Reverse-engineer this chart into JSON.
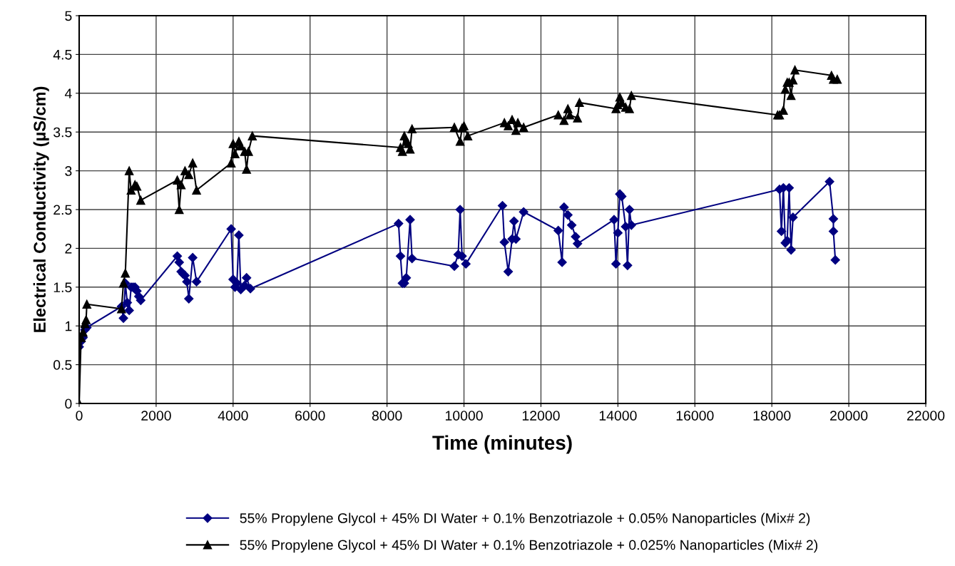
{
  "chart_data": {
    "type": "line",
    "xlabel": "Time (minutes)",
    "ylabel": "Electrical Conductivity (µS/cm)",
    "xlim": [
      0,
      22000
    ],
    "ylim": [
      0,
      5
    ],
    "xticks": [
      0,
      2000,
      4000,
      6000,
      8000,
      10000,
      12000,
      14000,
      16000,
      18000,
      20000,
      22000
    ],
    "yticks": [
      0,
      0.5,
      1,
      1.5,
      2,
      2.5,
      3,
      3.5,
      4,
      4.5,
      5
    ],
    "grid": true,
    "legend": "bottom",
    "series": [
      {
        "name": "55% Propylene Glycol + 45% DI Water + 0.1% Benzotriazole + 0.05% Nanoparticles (Mix# 2)",
        "color": "#000080",
        "marker": "diamond",
        "x": [
          0,
          50,
          100,
          150,
          200,
          1100,
          1150,
          1200,
          1250,
          1300,
          1350,
          1400,
          1450,
          1500,
          1550,
          1600,
          2550,
          2600,
          2650,
          2700,
          2750,
          2800,
          2850,
          2950,
          3050,
          3950,
          4000,
          4050,
          4100,
          4150,
          4200,
          4300,
          4350,
          4450,
          8300,
          8350,
          8400,
          8450,
          8500,
          8600,
          8650,
          9750,
          9850,
          9900,
          9950,
          10050,
          11000,
          11050,
          11150,
          11250,
          11300,
          11350,
          11550,
          12450,
          12550,
          12600,
          12700,
          12800,
          12900,
          12950,
          13900,
          13950,
          14000,
          14050,
          14100,
          14200,
          14250,
          14300,
          14350,
          18200,
          18250,
          18300,
          18350,
          18400,
          18450,
          18500,
          18550,
          19500,
          19600,
          19600,
          19650
        ],
        "values": [
          0.73,
          0.8,
          0.85,
          0.95,
          0.98,
          1.25,
          1.1,
          1.55,
          1.3,
          1.2,
          1.5,
          1.5,
          1.5,
          1.45,
          1.38,
          1.33,
          1.9,
          1.82,
          1.7,
          1.67,
          1.65,
          1.57,
          1.35,
          1.88,
          1.57,
          2.25,
          1.6,
          1.5,
          1.55,
          2.17,
          1.47,
          1.52,
          1.62,
          1.48,
          2.32,
          1.9,
          1.55,
          1.55,
          1.62,
          2.37,
          1.87,
          1.77,
          1.92,
          2.5,
          1.9,
          1.8,
          2.55,
          2.08,
          1.7,
          2.12,
          2.35,
          2.12,
          2.47,
          2.23,
          1.82,
          2.53,
          2.43,
          2.3,
          2.15,
          2.06,
          2.37,
          1.8,
          2.2,
          2.7,
          2.67,
          2.28,
          1.78,
          2.5,
          2.3,
          2.76,
          2.22,
          2.78,
          2.07,
          2.1,
          2.78,
          1.98,
          2.4,
          2.86,
          2.38,
          2.22,
          1.85
        ]
      },
      {
        "name": "55% Propylene Glycol + 45% DI Water + 0.1% Benzotriazole + 0.025% Nanoparticles (Mix# 2)",
        "color": "#000000",
        "marker": "triangle",
        "x": [
          0,
          50,
          100,
          150,
          180,
          200,
          1100,
          1150,
          1200,
          1300,
          1350,
          1450,
          1500,
          1600,
          2550,
          2600,
          2650,
          2750,
          2850,
          2950,
          3050,
          3950,
          4000,
          4050,
          4150,
          4200,
          4300,
          4350,
          4400,
          4500,
          8350,
          8400,
          8450,
          8500,
          8550,
          8600,
          8650,
          9750,
          9900,
          9950,
          10000,
          10100,
          11050,
          11150,
          11250,
          11350,
          11400,
          11550,
          12450,
          12600,
          12700,
          12750,
          12950,
          13000,
          13950,
          14000,
          14050,
          14100,
          14200,
          14300,
          14350,
          18150,
          18200,
          18300,
          18350,
          18400,
          18450,
          18500,
          18550,
          18600,
          19550,
          19600,
          19700
        ],
        "values": [
          0,
          0.85,
          0.92,
          1.03,
          1.08,
          1.28,
          1.22,
          1.55,
          1.68,
          3.0,
          2.75,
          2.82,
          2.8,
          2.62,
          2.88,
          2.5,
          2.82,
          3.0,
          2.95,
          3.1,
          2.75,
          3.1,
          3.35,
          3.22,
          3.38,
          3.32,
          3.25,
          3.02,
          3.25,
          3.45,
          3.3,
          3.25,
          3.45,
          3.38,
          3.35,
          3.28,
          3.54,
          3.56,
          3.38,
          3.55,
          3.58,
          3.45,
          3.62,
          3.58,
          3.66,
          3.52,
          3.62,
          3.56,
          3.72,
          3.65,
          3.8,
          3.72,
          3.68,
          3.88,
          3.8,
          3.85,
          3.95,
          3.88,
          3.82,
          3.8,
          3.97,
          3.72,
          3.72,
          3.78,
          4.05,
          4.14,
          4.14,
          3.97,
          4.17,
          4.3,
          4.23,
          4.18,
          4.18
        ]
      }
    ]
  }
}
